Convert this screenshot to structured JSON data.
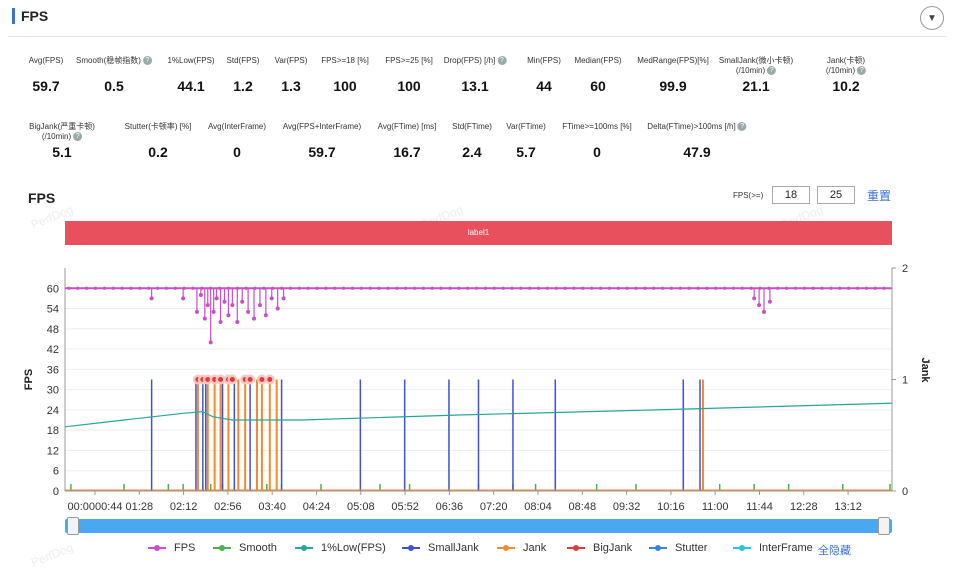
{
  "header": {
    "title": "FPS"
  },
  "metrics_row1": [
    {
      "label": "Avg(FPS)",
      "value": "59.7",
      "help": false
    },
    {
      "label": "Smooth(稳帧指数)",
      "value": "0.5",
      "help": true
    },
    {
      "label": "1%Low(FPS)",
      "value": "44.1",
      "help": false
    },
    {
      "label": "Std(FPS)",
      "value": "1.2",
      "help": false
    },
    {
      "label": "Var(FPS)",
      "value": "1.3",
      "help": false
    },
    {
      "label": "FPS>=18 [%]",
      "value": "100",
      "help": false
    },
    {
      "label": "FPS>=25 [%]",
      "value": "100",
      "help": false
    },
    {
      "label": "Drop(FPS) [/h]",
      "value": "13.1",
      "help": true
    },
    {
      "label": "Min(FPS)",
      "value": "44",
      "help": false
    },
    {
      "label": "Median(FPS)",
      "value": "60",
      "help": false
    },
    {
      "label": "MedRange(FPS)[%]",
      "value": "99.9",
      "help": false
    },
    {
      "label": "SmallJank(微小卡顿)",
      "label2": "(/10min)",
      "value": "21.1",
      "help": true
    },
    {
      "label": "Jank(卡顿)",
      "label2": "(/10min)",
      "value": "10.2",
      "help": true
    }
  ],
  "metrics_row2": [
    {
      "label": "BigJank(严重卡顿)",
      "label2": "(/10min)",
      "value": "5.1",
      "help": true
    },
    {
      "label": "Stutter(卡顿率) [%]",
      "value": "0.2",
      "help": false
    },
    {
      "label": "Avg(InterFrame)",
      "value": "0",
      "help": false
    },
    {
      "label": "Avg(FPS+InterFrame)",
      "value": "59.7",
      "help": false
    },
    {
      "label": "Avg(FTime) [ms]",
      "value": "16.7",
      "help": false
    },
    {
      "label": "Std(FTime)",
      "value": "2.4",
      "help": false
    },
    {
      "label": "Var(FTime)",
      "value": "5.7",
      "help": false
    },
    {
      "label": "FTime>=100ms [%]",
      "value": "0",
      "help": false
    },
    {
      "label": "Delta(FTime)>100ms [/h]",
      "value": "47.9",
      "help": true
    }
  ],
  "chart_title": "FPS",
  "threshold": {
    "label": "FPS(>=)",
    "value1": "18",
    "value2": "25",
    "reset": "重置"
  },
  "watermark": "PerfDog",
  "label_bar": "label1",
  "chart_data": {
    "type": "line",
    "xlabel": "",
    "ylabel": "FPS",
    "ylabel_right": "Jank",
    "ylim": [
      0,
      66
    ],
    "y2lim": [
      0,
      2
    ],
    "yticks": [
      0,
      6,
      12,
      18,
      24,
      30,
      36,
      42,
      48,
      54,
      60
    ],
    "y2ticks": [
      0,
      1,
      2
    ],
    "xticks": [
      "00:0000:44",
      "01:28",
      "02:12",
      "02:56",
      "03:40",
      "04:24",
      "05:08",
      "05:52",
      "06:36",
      "07:20",
      "08:04",
      "08:48",
      "09:32",
      "10:16",
      "11:00",
      "11:44",
      "12:28",
      "13:12"
    ],
    "duration_s": 840,
    "fps_base": 60,
    "fps_dips": [
      {
        "t": 88,
        "fps": 57
      },
      {
        "t": 120,
        "fps": 57
      },
      {
        "t": 134,
        "fps": 53
      },
      {
        "t": 138,
        "fps": 58
      },
      {
        "t": 142,
        "fps": 51
      },
      {
        "t": 145,
        "fps": 55
      },
      {
        "t": 148,
        "fps": 44
      },
      {
        "t": 151,
        "fps": 53
      },
      {
        "t": 154,
        "fps": 57
      },
      {
        "t": 158,
        "fps": 50
      },
      {
        "t": 162,
        "fps": 56
      },
      {
        "t": 166,
        "fps": 52
      },
      {
        "t": 170,
        "fps": 55
      },
      {
        "t": 175,
        "fps": 50
      },
      {
        "t": 180,
        "fps": 56
      },
      {
        "t": 186,
        "fps": 53
      },
      {
        "t": 192,
        "fps": 51
      },
      {
        "t": 198,
        "fps": 55
      },
      {
        "t": 204,
        "fps": 52
      },
      {
        "t": 210,
        "fps": 57
      },
      {
        "t": 216,
        "fps": 54
      },
      {
        "t": 222,
        "fps": 57
      },
      {
        "t": 700,
        "fps": 57
      },
      {
        "t": 705,
        "fps": 55
      },
      {
        "t": 710,
        "fps": 53
      },
      {
        "t": 716,
        "fps": 56
      }
    ],
    "low1_fps": [
      [
        0,
        19
      ],
      [
        60,
        21
      ],
      [
        120,
        23
      ],
      [
        140,
        23.5
      ],
      [
        150,
        22
      ],
      [
        170,
        21
      ],
      [
        240,
        21
      ],
      [
        400,
        22.5
      ],
      [
        600,
        24
      ],
      [
        840,
        26
      ]
    ],
    "small_jank_t": [
      88,
      133,
      140,
      143,
      160,
      172,
      188,
      220,
      300,
      345,
      390,
      420,
      455,
      498,
      628,
      645
    ],
    "jank_t": [
      135,
      145,
      152,
      158,
      166,
      176,
      183,
      195,
      200,
      208,
      215,
      648
    ],
    "big_jank_t": [
      135,
      140,
      145,
      152,
      158,
      166,
      170,
      183,
      188,
      200,
      208
    ],
    "smooth_t": [
      6,
      60,
      105,
      120,
      135,
      140,
      148,
      160,
      166,
      172,
      205,
      220,
      260,
      320,
      350,
      420,
      455,
      478,
      540,
      580,
      648,
      665,
      700,
      735,
      790,
      838
    ]
  },
  "series": [
    {
      "name": "FPS",
      "color": "#c94fc6"
    },
    {
      "name": "Smooth",
      "color": "#4caf50"
    },
    {
      "name": "1%Low(FPS)",
      "color": "#26a69a"
    },
    {
      "name": "SmallJank",
      "color": "#3f51d8"
    },
    {
      "name": "Jank",
      "color": "#f5892f"
    },
    {
      "name": "BigJank",
      "color": "#e53935"
    },
    {
      "name": "Stutter",
      "color": "#3b82e0"
    },
    {
      "name": "InterFrame",
      "color": "#29c4e0"
    }
  ],
  "hide_all": "全隐藏"
}
